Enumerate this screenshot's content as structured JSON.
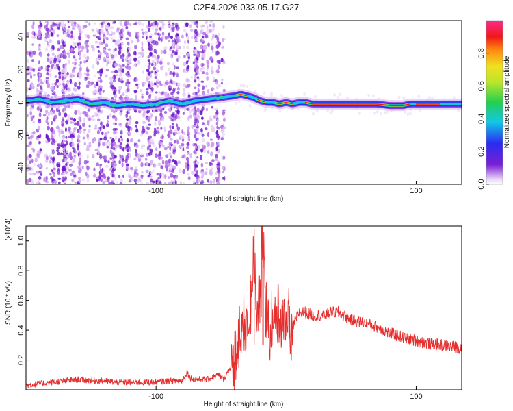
{
  "title": "C2E4.2026.033.05.17.G27",
  "chart_data": [
    {
      "type": "heatmap",
      "xlabel": "Height of straight line (km)",
      "ylabel": "Frequency (Hz)",
      "xlim": [
        -200,
        135
      ],
      "ylim": [
        -50,
        50
      ],
      "xticks": [
        -100,
        100
      ],
      "yticks": [
        -40,
        -20,
        0,
        20,
        40
      ],
      "colorbar": {
        "label": "Normalized spectral amplitude",
        "range": [
          0,
          1
        ],
        "ticks": [
          0.0,
          0.2,
          0.4,
          0.6,
          0.8
        ],
        "tick_labels": [
          "0.0",
          "0.2",
          "0.4",
          "0.6",
          "0.8"
        ]
      },
      "ridge": {
        "x": [
          -198,
          -190,
          -180,
          -170,
          -160,
          -150,
          -140,
          -130,
          -120,
          -110,
          -100,
          -90,
          -80,
          -70,
          -60,
          -50,
          -40,
          -35,
          -30,
          -25,
          -20,
          -15,
          -10,
          -5,
          0,
          5,
          10,
          15,
          20,
          25,
          30,
          40,
          50,
          60,
          70,
          80,
          85,
          90,
          95,
          100,
          110,
          120,
          135
        ],
        "y": [
          1,
          2,
          0,
          1,
          2,
          -1,
          0,
          -2,
          -1,
          -2,
          -1,
          1,
          -1,
          1,
          2,
          3,
          4,
          5,
          4,
          3,
          1,
          0,
          0,
          -1,
          0,
          -1,
          0,
          0,
          -1,
          -1,
          -1,
          -1,
          -1,
          -1,
          -1,
          -2,
          -2,
          -2,
          -1,
          -1,
          -1,
          -1,
          -1
        ]
      },
      "scatter_region_x": [
        -200,
        -48
      ]
    },
    {
      "type": "line",
      "xlabel": "Height of straight line (km)",
      "ylabel": "SNR (10 * v/v)",
      "y_multiplier": "(x10^4)",
      "xlim": [
        -200,
        135
      ],
      "ylim": [
        0,
        1.1
      ],
      "xticks": [
        -100,
        100
      ],
      "yticks": [
        0.2,
        0.4,
        0.6,
        0.8,
        1.0
      ],
      "series": [
        {
          "color": "#e53030",
          "x": [
            -200,
            -190,
            -180,
            -170,
            -160,
            -150,
            -140,
            -130,
            -120,
            -110,
            -100,
            -90,
            -80,
            -76,
            -74,
            -70,
            -60,
            -52,
            -48,
            -40,
            -36,
            -32,
            -28,
            -25,
            -23,
            -20,
            -18,
            -16,
            -14,
            -10,
            -6,
            -2,
            0,
            5,
            10,
            15,
            20,
            25,
            30,
            35,
            40,
            50,
            60,
            70,
            80,
            90,
            100,
            110,
            120,
            135
          ],
          "y": [
            0.03,
            0.04,
            0.05,
            0.06,
            0.07,
            0.06,
            0.06,
            0.05,
            0.05,
            0.05,
            0.05,
            0.06,
            0.06,
            0.12,
            0.08,
            0.07,
            0.07,
            0.1,
            0.07,
            0.2,
            0.35,
            0.45,
            0.5,
            0.95,
            0.6,
            0.55,
            1.08,
            0.6,
            0.5,
            0.45,
            0.55,
            0.45,
            0.5,
            0.42,
            0.52,
            0.52,
            0.5,
            0.5,
            0.5,
            0.52,
            0.52,
            0.47,
            0.45,
            0.42,
            0.38,
            0.35,
            0.33,
            0.31,
            0.3,
            0.28
          ]
        }
      ]
    }
  ]
}
